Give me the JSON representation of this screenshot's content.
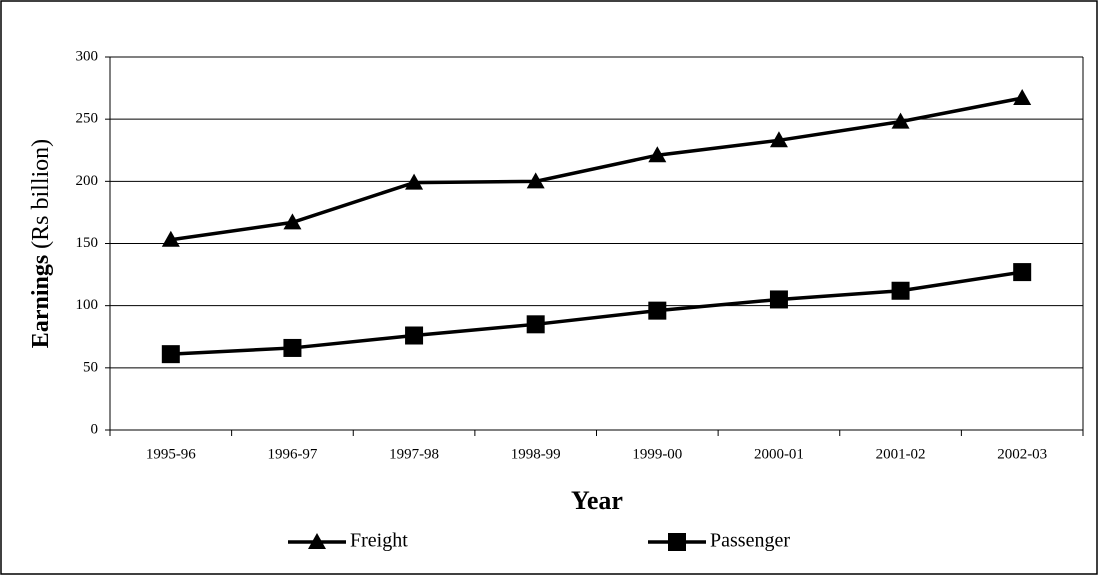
{
  "chart_data": {
    "type": "line",
    "xlabel": "Year",
    "ylabel": "Earnings (Rs billion)",
    "categories": [
      "1995-96",
      "1996-97",
      "1997-98",
      "1998-99",
      "1999-00",
      "2000-01",
      "2001-02",
      "2002-03"
    ],
    "series": [
      {
        "name": "Freight",
        "color": "#000000",
        "marker": "triangle",
        "values": [
          153,
          167,
          199,
          200,
          221,
          233,
          248,
          267
        ]
      },
      {
        "name": "Passenger",
        "color": "#000000",
        "marker": "square",
        "values": [
          61,
          66,
          76,
          85,
          96,
          105,
          112,
          127
        ]
      }
    ],
    "ylim": [
      0,
      300
    ],
    "yticks": [
      0,
      50,
      100,
      150,
      200,
      250,
      300
    ],
    "grid": true,
    "legend": "bottom"
  }
}
